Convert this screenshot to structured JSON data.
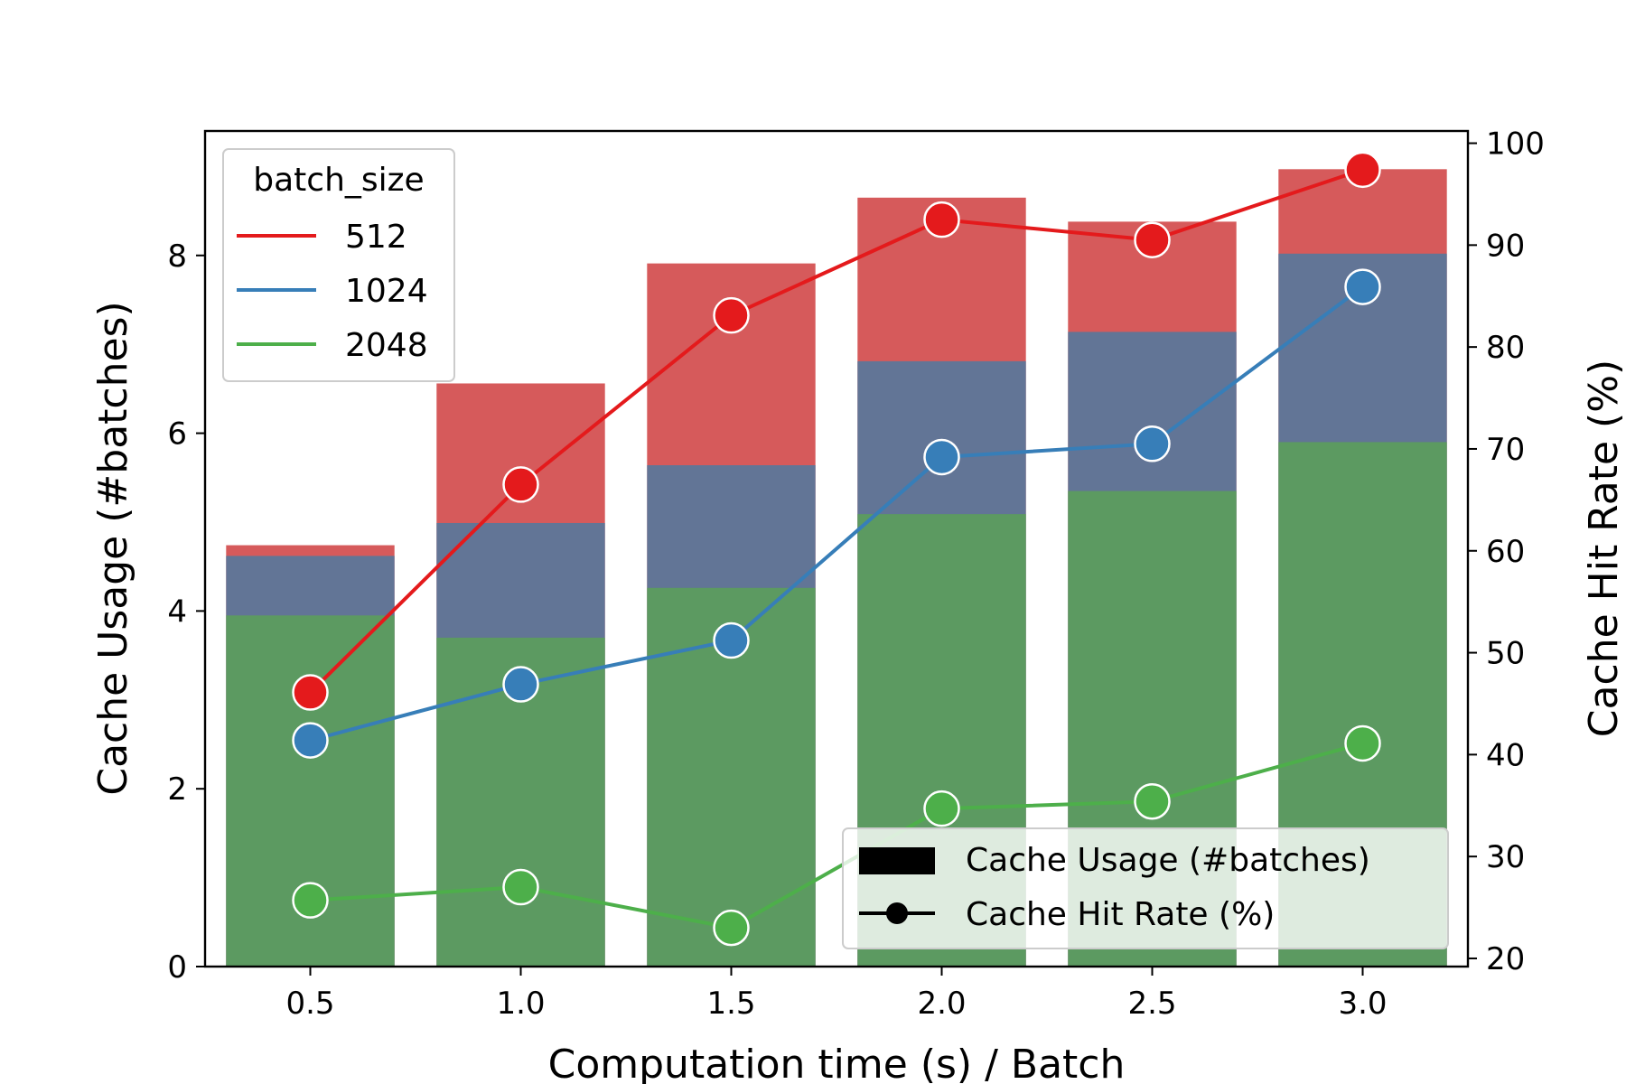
{
  "chart_data": {
    "type": "bar",
    "xlabel": "Computation time (s) / Batch",
    "ylabel_left": "Cache Usage (#batches)",
    "ylabel_right": "Cache Hit Rate (%)",
    "categories": [
      "0.5",
      "1.0",
      "1.5",
      "2.0",
      "2.5",
      "3.0"
    ],
    "ylim_left": [
      0,
      9.4
    ],
    "ylim_right": [
      19.2,
      101.2
    ],
    "yticks_left": [
      "0",
      "2",
      "4",
      "6",
      "8"
    ],
    "yticks_right": [
      "20",
      "30",
      "40",
      "50",
      "60",
      "70",
      "80",
      "90",
      "100"
    ],
    "grid": false,
    "bars": {
      "layering": "overlapping, drawn largest first",
      "series": [
        {
          "name": "512",
          "color": "#d65a5b",
          "values": [
            4.74,
            6.56,
            7.91,
            8.65,
            8.38,
            8.97
          ]
        },
        {
          "name": "1024",
          "color": "#627596",
          "values": [
            4.62,
            4.99,
            5.64,
            6.81,
            7.14,
            8.02
          ]
        },
        {
          "name": "2048",
          "color": "#5c9a61",
          "values": [
            3.95,
            3.7,
            4.26,
            5.09,
            5.35,
            5.9
          ]
        }
      ]
    },
    "lines": {
      "axis": "right",
      "series": [
        {
          "name": "512",
          "color": "#e41a1c",
          "values": [
            46.1,
            66.5,
            83.1,
            92.5,
            90.5,
            97.4
          ]
        },
        {
          "name": "1024",
          "color": "#377eb8",
          "values": [
            41.4,
            46.9,
            51.2,
            69.2,
            70.5,
            85.9
          ]
        },
        {
          "name": "2048",
          "color": "#4daf4a",
          "values": [
            25.7,
            27.0,
            23.0,
            34.7,
            35.4,
            41.1
          ]
        }
      ]
    },
    "legend_hue": {
      "title": "batch_size",
      "placement": "upper-left",
      "entries": [
        "512",
        "1024",
        "2048"
      ]
    },
    "legend_style": {
      "placement": "lower-right",
      "entries": [
        "Cache Usage (#batches)",
        "Cache Hit Rate (%)"
      ]
    }
  }
}
